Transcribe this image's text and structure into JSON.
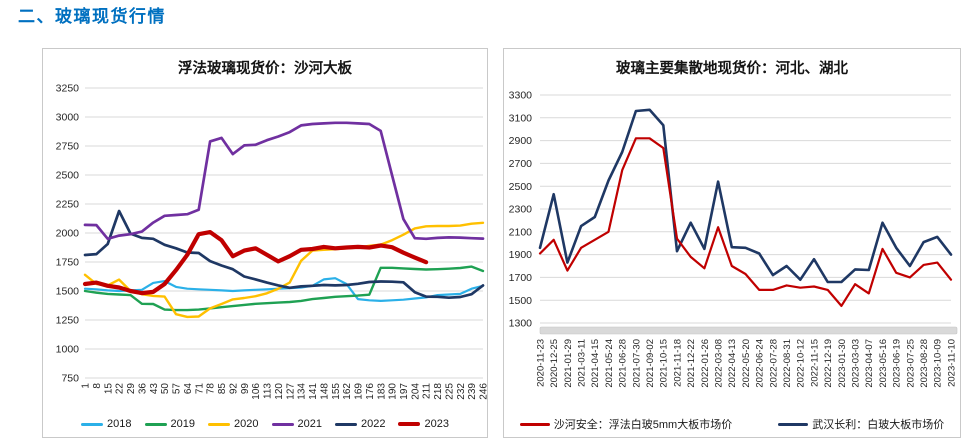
{
  "header": {
    "title": "二、玻璃现货行情"
  },
  "colors": {
    "accent": "#0070C0",
    "grid": "#D9D9D9",
    "panel_border": "#C9C9C9",
    "scrollbar_fill": "#D9D9D9",
    "scrollbar_border": "#C6C6C6"
  },
  "chart_data": [
    {
      "type": "line",
      "title": "浮法玻璃现货价：沙河大板",
      "xlabel": "",
      "ylabel": "",
      "ylim": [
        750,
        3250
      ],
      "ytick_step": 250,
      "grid": true,
      "legend_position": "bottom",
      "categories": [
        1,
        8,
        15,
        22,
        29,
        36,
        43,
        50,
        57,
        64,
        71,
        78,
        85,
        92,
        99,
        106,
        113,
        120,
        127,
        134,
        141,
        148,
        155,
        162,
        169,
        176,
        183,
        190,
        197,
        204,
        211,
        218,
        225,
        232,
        239,
        246
      ],
      "series": [
        {
          "name": "2018",
          "color": "#2BB0E8",
          "width": 2.2,
          "values": [
            1520,
            1515,
            1505,
            1500,
            1505,
            1510,
            1570,
            1585,
            1535,
            1520,
            1515,
            1510,
            1505,
            1500,
            1505,
            1510,
            1515,
            1520,
            1525,
            1530,
            1545,
            1600,
            1610,
            1560,
            1430,
            1420,
            1415,
            1420,
            1425,
            1435,
            1445,
            1465,
            1470,
            1475,
            1520,
            1545
          ]
        },
        {
          "name": "2019",
          "color": "#1FA153",
          "width": 2.4,
          "values": [
            1500,
            1485,
            1475,
            1470,
            1465,
            1390,
            1388,
            1340,
            1335,
            1335,
            1340,
            1350,
            1360,
            1370,
            1380,
            1390,
            1395,
            1400,
            1405,
            1415,
            1430,
            1440,
            1450,
            1455,
            1460,
            1468,
            1700,
            1700,
            1695,
            1690,
            1685,
            1688,
            1692,
            1698,
            1710,
            1672
          ]
        },
        {
          "name": "2020",
          "color": "#FFC000",
          "width": 2.4,
          "values": [
            1640,
            1560,
            1548,
            1598,
            1500,
            1472,
            1458,
            1452,
            1300,
            1277,
            1280,
            1350,
            1388,
            1428,
            1440,
            1455,
            1480,
            1520,
            1572,
            1760,
            1848,
            1855,
            1860,
            1868,
            1875,
            1890,
            1900,
            1938,
            1985,
            2040,
            2058,
            2060,
            2060,
            2064,
            2080,
            2088
          ]
        },
        {
          "name": "2021",
          "color": "#7030A0",
          "width": 2.7,
          "values": [
            2070,
            2068,
            1950,
            1978,
            1990,
            2012,
            2090,
            2148,
            2155,
            2162,
            2200,
            2790,
            2820,
            2680,
            2755,
            2760,
            2800,
            2832,
            2870,
            2928,
            2940,
            2945,
            2950,
            2950,
            2945,
            2940,
            2880,
            2500,
            2120,
            1955,
            1950,
            1958,
            1962,
            1960,
            1955,
            1952
          ]
        },
        {
          "name": "2022",
          "color": "#1F3864",
          "width": 2.7,
          "values": [
            1810,
            1818,
            1905,
            2190,
            1995,
            1958,
            1950,
            1898,
            1868,
            1832,
            1828,
            1758,
            1720,
            1688,
            1625,
            1600,
            1572,
            1548,
            1528,
            1540,
            1545,
            1552,
            1548,
            1552,
            1562,
            1578,
            1582,
            1580,
            1575,
            1490,
            1452,
            1450,
            1442,
            1448,
            1472,
            1548
          ]
        },
        {
          "name": "2023",
          "color": "#C00000",
          "width": 4.2,
          "values": [
            1560,
            1572,
            1545,
            1530,
            1500,
            1482,
            1492,
            1560,
            1680,
            1812,
            1990,
            2008,
            1938,
            1800,
            1848,
            1868,
            1812,
            1755,
            1800,
            1855,
            1862,
            1880,
            1868,
            1875,
            1880,
            1875,
            1892,
            1878,
            1830,
            1788,
            1748,
            null,
            null,
            null,
            null,
            null
          ]
        }
      ]
    },
    {
      "type": "line",
      "title": "玻璃主要集散地现货价：河北、湖北",
      "xlabel": "",
      "ylabel": "",
      "ylim": [
        1300,
        3300
      ],
      "ytick_step": 200,
      "grid": true,
      "legend_position": "bottom",
      "scrollbar": true,
      "categories": [
        "2020-11-23",
        "2020-12-25",
        "2021-01-29",
        "2021-03-11",
        "2021-04-15",
        "2021-05-24",
        "2021-06-28",
        "2021-07-30",
        "2021-09-02",
        "2021-10-15",
        "2021-11-18",
        "2021-12-22",
        "2022-01-26",
        "2022-03-08",
        "2022-04-13",
        "2022-05-20",
        "2022-06-24",
        "2022-07-28",
        "2022-08-31",
        "2022-10-12",
        "2022-11-15",
        "2022-12-19",
        "2023-01-30",
        "2023-03-03",
        "2023-04-07",
        "2023-05-16",
        "2023-06-19",
        "2023-07-25",
        "2023-08-28",
        "2023-10-09",
        "2023-11-10"
      ],
      "series": [
        {
          "name": "沙河安全：浮法白玻5mm大板市场价",
          "color": "#C00000",
          "width": 2.2,
          "values": [
            1910,
            2030,
            1760,
            1960,
            2030,
            2100,
            2640,
            2920,
            2920,
            2835,
            2040,
            1880,
            1780,
            2140,
            1800,
            1730,
            1590,
            1590,
            1630,
            1610,
            1620,
            1590,
            1450,
            1640,
            1560,
            1950,
            1740,
            1700,
            1810,
            1830,
            1680
          ]
        },
        {
          "name": "武汉长利：白玻大板市场价",
          "color": "#1F3864",
          "width": 2.6,
          "values": [
            1960,
            2430,
            1830,
            2150,
            2230,
            2550,
            2800,
            3160,
            3170,
            3035,
            1930,
            2180,
            1950,
            2540,
            1965,
            1960,
            1910,
            1720,
            1800,
            1680,
            1860,
            1660,
            1660,
            1770,
            1765,
            2180,
            1960,
            1800,
            2010,
            2055,
            1900
          ]
        }
      ]
    }
  ]
}
